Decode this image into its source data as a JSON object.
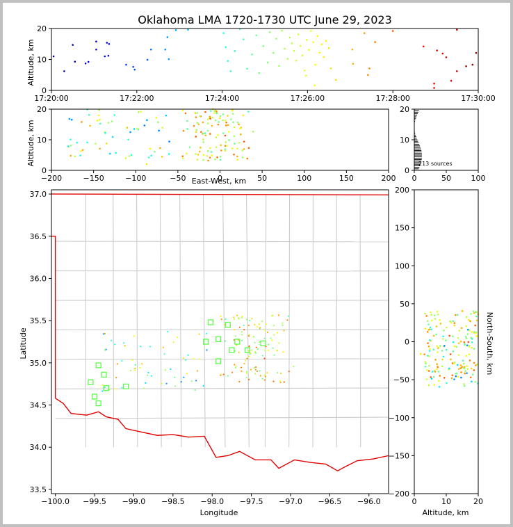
{
  "chart_data": {
    "type": "scatter",
    "title": "Oklahoma LMA 1720-1730 UTC June 29, 2023",
    "source_count_label": "213 sources",
    "colormap": "jet (time)",
    "panels": {
      "time_altitude": {
        "ylabel": "Altitude, km",
        "xlim": [
          "17:20:00",
          "17:30:00"
        ],
        "xticks": [
          "17:20:00",
          "17:22:00",
          "17:24:00",
          "17:26:00",
          "17:28:00",
          "17:30:00"
        ],
        "ylim": [
          0,
          20
        ],
        "yticks": [
          "0",
          "10",
          "20"
        ],
        "points": [
          {
            "t": "17:20:03",
            "alt": 11.0
          },
          {
            "t": "17:20:18",
            "alt": 6.2
          },
          {
            "t": "17:20:30",
            "alt": 14.7
          },
          {
            "t": "17:20:33",
            "alt": 9.3
          },
          {
            "t": "17:20:48",
            "alt": 8.7
          },
          {
            "t": "17:20:52",
            "alt": 9.2
          },
          {
            "t": "17:21:03",
            "alt": 15.8
          },
          {
            "t": "17:21:03",
            "alt": 13.2
          },
          {
            "t": "17:21:15",
            "alt": 11.0
          },
          {
            "t": "17:21:20",
            "alt": 11.2
          },
          {
            "t": "17:21:18",
            "alt": 15.4
          },
          {
            "t": "17:21:21",
            "alt": 15.0
          },
          {
            "t": "17:21:45",
            "alt": 8.3
          },
          {
            "t": "17:21:55",
            "alt": 7.6
          },
          {
            "t": "17:21:57",
            "alt": 6.7
          },
          {
            "t": "17:22:15",
            "alt": 9.9
          },
          {
            "t": "17:22:20",
            "alt": 13.2
          },
          {
            "t": "17:22:40",
            "alt": 13.2
          },
          {
            "t": "17:22:43",
            "alt": 17.2
          },
          {
            "t": "17:22:45",
            "alt": 10.1
          },
          {
            "t": "17:22:55",
            "alt": 19.5
          },
          {
            "t": "17:23:12",
            "alt": 19.6
          },
          {
            "t": "17:24:02",
            "alt": 18.5
          },
          {
            "t": "17:24:05",
            "alt": 14.0
          },
          {
            "t": "17:24:08",
            "alt": 9.5
          },
          {
            "t": "17:24:12",
            "alt": 6.2
          },
          {
            "t": "17:24:18",
            "alt": 12.7
          },
          {
            "t": "17:24:25",
            "alt": 19.8
          },
          {
            "t": "17:24:30",
            "alt": 16.5
          },
          {
            "t": "17:24:35",
            "alt": 7.0
          },
          {
            "t": "17:24:42",
            "alt": 11.6
          },
          {
            "t": "17:24:48",
            "alt": 17.8
          },
          {
            "t": "17:24:52",
            "alt": 5.6
          },
          {
            "t": "17:24:58",
            "alt": 14.3
          },
          {
            "t": "17:25:04",
            "alt": 9.0
          },
          {
            "t": "17:25:07",
            "alt": 18.8
          },
          {
            "t": "17:25:12",
            "alt": 12.1
          },
          {
            "t": "17:25:16",
            "alt": 16.7
          },
          {
            "t": "17:25:20",
            "alt": 7.9
          },
          {
            "t": "17:25:24",
            "alt": 19.3
          },
          {
            "t": "17:25:28",
            "alt": 13.5
          },
          {
            "t": "17:25:32",
            "alt": 10.2
          },
          {
            "t": "17:25:35",
            "alt": 17.1
          },
          {
            "t": "17:25:38",
            "alt": 15.2
          },
          {
            "t": "17:25:41",
            "alt": 12.8
          },
          {
            "t": "17:25:44",
            "alt": 9.6
          },
          {
            "t": "17:25:47",
            "alt": 18.1
          },
          {
            "t": "17:25:50",
            "alt": 14.4
          },
          {
            "t": "17:25:53",
            "alt": 11.3
          },
          {
            "t": "17:25:56",
            "alt": 6.4
          },
          {
            "t": "17:25:59",
            "alt": 16.3
          },
          {
            "t": "17:26:02",
            "alt": 13.1
          },
          {
            "t": "17:26:05",
            "alt": 19.2
          },
          {
            "t": "17:26:08",
            "alt": 15.6
          },
          {
            "t": "17:26:11",
            "alt": 8.3
          },
          {
            "t": "17:26:14",
            "alt": 17.6
          },
          {
            "t": "17:26:17",
            "alt": 12.2
          },
          {
            "t": "17:26:20",
            "alt": 14.9
          },
          {
            "t": "17:26:23",
            "alt": 10.8
          },
          {
            "t": "17:26:26",
            "alt": 16.0
          },
          {
            "t": "17:26:30",
            "alt": 13.7
          },
          {
            "t": "17:26:33",
            "alt": 7.1
          },
          {
            "t": "17:26:40",
            "alt": 3.4
          },
          {
            "t": "17:26:10",
            "alt": 1.6
          },
          {
            "t": "17:25:58",
            "alt": 4.8
          },
          {
            "t": "17:27:03",
            "alt": 13.2
          },
          {
            "t": "17:27:04",
            "alt": 8.6
          },
          {
            "t": "17:27:20",
            "alt": 18.5
          },
          {
            "t": "17:27:25",
            "alt": 5.0
          },
          {
            "t": "17:27:27",
            "alt": 7.1
          },
          {
            "t": "17:27:35",
            "alt": 15.6
          },
          {
            "t": "17:28:00",
            "alt": 19.2
          },
          {
            "t": "17:28:43",
            "alt": 14.2
          },
          {
            "t": "17:28:58",
            "alt": 2.2
          },
          {
            "t": "17:28:58",
            "alt": 0.8
          },
          {
            "t": "17:29:02",
            "alt": 12.9
          },
          {
            "t": "17:29:10",
            "alt": 11.9
          },
          {
            "t": "17:29:15",
            "alt": 10.7
          },
          {
            "t": "17:29:22",
            "alt": 3.1
          },
          {
            "t": "17:29:30",
            "alt": 6.2
          },
          {
            "t": "17:29:30",
            "alt": 19.6
          },
          {
            "t": "17:29:43",
            "alt": 7.8
          },
          {
            "t": "17:29:52",
            "alt": 8.3
          },
          {
            "t": "17:29:57",
            "alt": 12.1
          }
        ]
      },
      "east_west_altitude": {
        "xlabel": "East-West, km",
        "ylabel": "Altitude, km",
        "xlim": [
          -200,
          200
        ],
        "xticks": [
          "−200",
          "−150",
          "−100",
          "−50",
          "0",
          "50",
          "100",
          "150",
          "200"
        ],
        "ylim": [
          0,
          20
        ],
        "yticks": [
          "0",
          "10",
          "20"
        ]
      },
      "histogram": {
        "xlim": [
          0,
          100
        ],
        "xticks": [
          "0",
          "50",
          "100"
        ],
        "ylim": [
          0,
          20
        ],
        "yticks": [
          "0",
          "10",
          "20"
        ]
      },
      "plan_view": {
        "xlabel": "Longitude",
        "ylabel": "Latitude",
        "xlim": [
          -100.05,
          -95.75
        ],
        "xticks": [
          "−100.0",
          "−99.5",
          "−99.0",
          "−98.5",
          "−98.0",
          "−97.5",
          "−97.0",
          "−96.5",
          "−96.0"
        ],
        "ylim": [
          33.45,
          37.05
        ],
        "yticks": [
          "33.5",
          "34.0",
          "34.5",
          "35.0",
          "35.5",
          "36.0",
          "36.5",
          "37.0"
        ],
        "stations": [
          {
            "lon": -99.55,
            "lat": 34.77
          },
          {
            "lon": -99.5,
            "lat": 34.6
          },
          {
            "lon": -99.45,
            "lat": 34.52
          },
          {
            "lon": -99.45,
            "lat": 34.97
          },
          {
            "lon": -99.38,
            "lat": 34.86
          },
          {
            "lon": -99.35,
            "lat": 34.7
          },
          {
            "lon": -99.1,
            "lat": 34.72
          },
          {
            "lon": -98.08,
            "lat": 35.25
          },
          {
            "lon": -98.02,
            "lat": 35.48
          },
          {
            "lon": -97.92,
            "lat": 35.28
          },
          {
            "lon": -97.92,
            "lat": 35.02
          },
          {
            "lon": -97.8,
            "lat": 35.45
          },
          {
            "lon": -97.75,
            "lat": 35.15
          },
          {
            "lon": -97.68,
            "lat": 35.25
          },
          {
            "lon": -97.55,
            "lat": 35.15
          },
          {
            "lon": -97.35,
            "lat": 35.23
          }
        ]
      },
      "altitude_north_south": {
        "xlabel": "Altitude, km",
        "ylabel": "North-South, km",
        "xlim": [
          0,
          20
        ],
        "xticks": [
          "0",
          "10",
          "20"
        ],
        "ylim": [
          -200,
          200
        ],
        "yticks": [
          "−200",
          "−150",
          "−100",
          "−50",
          "0",
          "50",
          "100",
          "150",
          "200"
        ]
      }
    }
  }
}
